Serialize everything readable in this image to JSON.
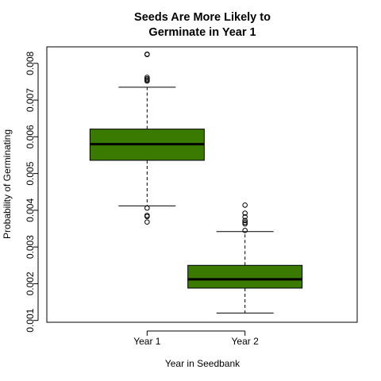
{
  "chart_data": {
    "type": "boxplot",
    "title_lines": [
      "Seeds Are More Likely to",
      "Germinate in Year 1"
    ],
    "xlabel": "Year in Seedbank",
    "ylabel": "Probability of Germinating",
    "ylim": [
      0.00095,
      0.00845
    ],
    "yticks": [
      0.001,
      0.002,
      0.003,
      0.004,
      0.005,
      0.006,
      0.007,
      0.008
    ],
    "ytick_labels": [
      "0.001",
      "0.002",
      "0.003",
      "0.004",
      "0.005",
      "0.006",
      "0.007",
      "0.008"
    ],
    "categories": [
      "Year 1",
      "Year 2"
    ],
    "box_color": "#3a7a00",
    "boxes": [
      {
        "name": "Year 1",
        "whisker_low": 0.00412,
        "q1": 0.00536,
        "median": 0.0058,
        "q3": 0.00621,
        "whisker_high": 0.00735,
        "outliers": [
          0.00824,
          0.00825,
          0.00762,
          0.00758,
          0.00755,
          0.00752,
          0.00406,
          0.00386,
          0.00383,
          0.00368
        ]
      },
      {
        "name": "Year 2",
        "whisker_low": 0.0012,
        "q1": 0.00188,
        "median": 0.00212,
        "q3": 0.0025,
        "whisker_high": 0.00342,
        "outliers": [
          0.00414,
          0.00392,
          0.00382,
          0.00372,
          0.00367,
          0.00363,
          0.00345
        ]
      }
    ]
  }
}
